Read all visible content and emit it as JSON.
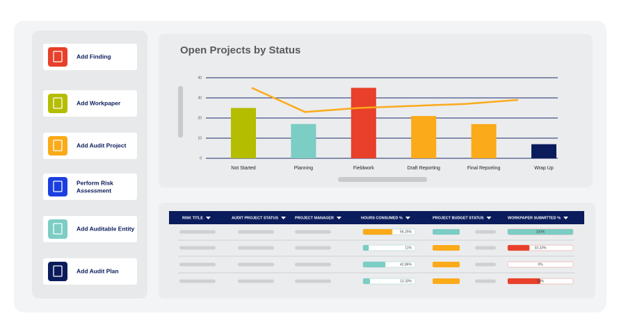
{
  "sidebar": {
    "actions": [
      {
        "label": "Add Finding",
        "icon_color": "#e8402a"
      },
      {
        "label": "Add Workpaper",
        "icon_color": "#b5bd00"
      },
      {
        "label": "Add Audit Project",
        "icon_color": "#fbaa19"
      },
      {
        "label": "Perform Risk Assessment",
        "icon_color": "#1a3fe0"
      },
      {
        "label": "Add Auditable Entity",
        "icon_color": "#7ccdc4"
      },
      {
        "label": "Add Audit Plan",
        "icon_color": "#0b1c5c"
      }
    ]
  },
  "chart_data": {
    "type": "bar",
    "title": "Open Projects by Status",
    "categories": [
      "Not Started",
      "Planning",
      "Fieldwork",
      "Draft Reporting",
      "Final Reporting",
      "Wrap Up"
    ],
    "series": [
      {
        "type": "bar",
        "values": [
          25,
          17,
          35,
          21,
          17,
          7
        ],
        "colors": [
          "#b5bd00",
          "#7ccdc4",
          "#e8402a",
          "#fbaa19",
          "#fbaa19",
          "#0b1c5c"
        ]
      },
      {
        "type": "line",
        "values": [
          35,
          23,
          25,
          26,
          27,
          29
        ],
        "color": "#fbaa19"
      }
    ],
    "ylim": [
      0,
      40
    ],
    "yticks": [
      0,
      10,
      20,
      30,
      40
    ],
    "grid": true,
    "grid_color": "#1b2a6b"
  },
  "table": {
    "columns": [
      "RISK TITLE",
      "AUDIT PROJECT STATUS",
      "PROJECT MANAGER",
      "HOURS CONSUMED %",
      "PROJECT BUDGET STATUS",
      "WORKPAPER SUBMITTED %"
    ],
    "rows": [
      {
        "hours_consumed": 56.25,
        "hours_label": "56.25%",
        "hours_color": "#fbaa19",
        "budget_color": "#7ccdc4",
        "workpaper_submitted": 100,
        "workpaper_label": "100%",
        "workpaper_color": "#7ccdc4"
      },
      {
        "hours_consumed": 11,
        "hours_label": "11%",
        "hours_color": "#7ccdc4",
        "budget_color": "#fbaa19",
        "workpaper_submitted": 33.33,
        "workpaper_label": "33.33%",
        "workpaper_color": "#e8402a"
      },
      {
        "hours_consumed": 42.86,
        "hours_label": "42.86%",
        "hours_color": "#7ccdc4",
        "budget_color": "#fbaa19",
        "workpaper_submitted": 0,
        "workpaper_label": "0%",
        "workpaper_color": "#e8402a"
      },
      {
        "hours_consumed": 13.33,
        "hours_label": "13.33%",
        "hours_color": "#7ccdc4",
        "budget_color": "#fbaa19",
        "workpaper_submitted": 50,
        "workpaper_label": "50%",
        "workpaper_color": "#e8402a"
      }
    ]
  }
}
